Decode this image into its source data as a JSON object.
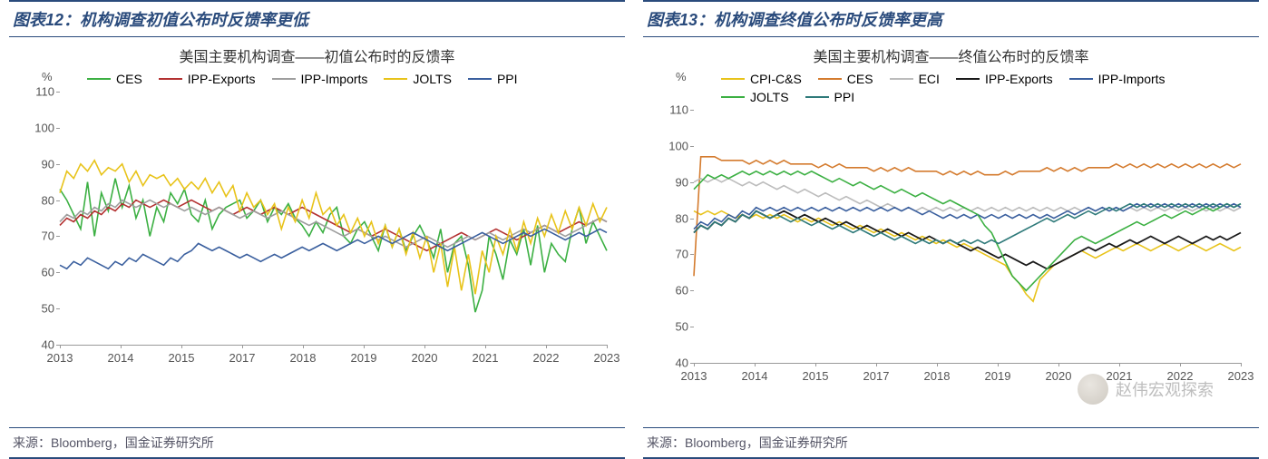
{
  "colors": {
    "border": "#2a4b7c",
    "axis": "#999999",
    "text": "#555555",
    "background": "#ffffff"
  },
  "watermark": "赵伟宏观探索",
  "left": {
    "title_bar": "图表12：机构调查初值公布时反馈率更低",
    "chart_title": "美国主要机构调查——初值公布时的反馈率",
    "y_unit": "%",
    "ylim": [
      40,
      110
    ],
    "ytick_step": 10,
    "x_years": [
      "2013",
      "2014",
      "2015",
      "2017",
      "2018",
      "2019",
      "2020",
      "2021",
      "2022",
      "2023"
    ],
    "source": "来源：Bloomberg，国金证券研究所",
    "series": [
      {
        "name": "CES",
        "color": "#3cb043",
        "width": 1.6,
        "data": [
          83,
          80,
          76,
          72,
          85,
          70,
          82,
          77,
          86,
          78,
          84,
          75,
          80,
          70,
          78,
          74,
          82,
          79,
          83,
          76,
          74,
          80,
          72,
          76,
          78,
          79,
          80,
          75,
          77,
          80,
          74,
          78,
          76,
          79,
          75,
          73,
          70,
          74,
          71,
          76,
          78,
          70,
          68,
          72,
          74,
          70,
          66,
          73,
          67,
          72,
          66,
          70,
          73,
          69,
          64,
          72,
          60,
          68,
          70,
          62,
          49,
          55,
          70,
          65,
          58,
          69,
          65,
          72,
          62,
          73,
          60,
          68,
          65,
          63,
          72,
          78,
          68,
          74,
          70,
          66
        ]
      },
      {
        "name": "IPP-Exports",
        "color": "#b33131",
        "width": 1.6,
        "data": [
          73,
          75,
          74,
          76,
          75,
          77,
          76,
          78,
          77,
          79,
          78,
          80,
          79,
          78,
          79,
          80,
          79,
          78,
          79,
          80,
          79,
          78,
          77,
          78,
          77,
          76,
          77,
          78,
          77,
          76,
          77,
          78,
          77,
          76,
          77,
          78,
          77,
          76,
          75,
          74,
          73,
          72,
          71,
          72,
          71,
          70,
          71,
          72,
          71,
          70,
          69,
          68,
          67,
          66,
          67,
          68,
          69,
          70,
          71,
          70,
          69,
          70,
          71,
          72,
          71,
          70,
          69,
          70,
          71,
          72,
          73,
          72,
          71,
          72,
          73,
          74,
          73,
          74,
          75,
          74
        ]
      },
      {
        "name": "IPP-Imports",
        "color": "#9e9e9e",
        "width": 1.6,
        "data": [
          74,
          76,
          75,
          77,
          76,
          78,
          77,
          79,
          78,
          80,
          79,
          78,
          79,
          80,
          79,
          78,
          79,
          78,
          77,
          78,
          77,
          76,
          77,
          78,
          77,
          76,
          75,
          76,
          77,
          76,
          75,
          76,
          77,
          76,
          75,
          74,
          73,
          74,
          73,
          72,
          71,
          70,
          71,
          72,
          71,
          70,
          69,
          70,
          69,
          68,
          67,
          68,
          69,
          70,
          69,
          68,
          67,
          68,
          69,
          70,
          69,
          70,
          71,
          70,
          69,
          70,
          71,
          72,
          71,
          72,
          73,
          72,
          71,
          70,
          71,
          72,
          73,
          74,
          75,
          74
        ]
      },
      {
        "name": "JOLTS",
        "color": "#e8c31a",
        "width": 1.6,
        "data": [
          82,
          88,
          86,
          90,
          88,
          91,
          87,
          89,
          88,
          90,
          85,
          88,
          84,
          87,
          86,
          87,
          84,
          86,
          83,
          85,
          83,
          86,
          82,
          85,
          81,
          84,
          77,
          82,
          78,
          80,
          76,
          79,
          72,
          78,
          74,
          80,
          75,
          82,
          76,
          78,
          73,
          76,
          71,
          75,
          70,
          74,
          68,
          73,
          67,
          72,
          65,
          71,
          64,
          70,
          60,
          68,
          56,
          67,
          55,
          65,
          54,
          66,
          60,
          70,
          65,
          72,
          66,
          74,
          68,
          75,
          70,
          76,
          71,
          77,
          72,
          78,
          73,
          79,
          74,
          78
        ]
      },
      {
        "name": "PPI",
        "color": "#3a5f9e",
        "width": 1.6,
        "data": [
          62,
          61,
          63,
          62,
          64,
          63,
          62,
          61,
          63,
          62,
          64,
          63,
          65,
          64,
          63,
          62,
          64,
          63,
          65,
          66,
          68,
          67,
          66,
          67,
          66,
          65,
          64,
          65,
          64,
          63,
          64,
          65,
          64,
          65,
          66,
          67,
          66,
          67,
          68,
          67,
          66,
          67,
          68,
          69,
          68,
          69,
          70,
          69,
          68,
          69,
          70,
          71,
          70,
          69,
          68,
          67,
          66,
          67,
          68,
          69,
          70,
          71,
          70,
          69,
          68,
          69,
          70,
          71,
          70,
          71,
          72,
          71,
          70,
          69,
          70,
          71,
          70,
          71,
          72,
          71
        ]
      }
    ]
  },
  "right": {
    "title_bar": "图表13：机构调查终值公布时反馈率更高",
    "chart_title": "美国主要机构调查——终值公布时的反馈率",
    "y_unit": "%",
    "ylim": [
      40,
      110
    ],
    "ytick_step": 10,
    "x_years": [
      "2013",
      "2014",
      "2015",
      "2017",
      "2018",
      "2019",
      "2020",
      "2021",
      "2022",
      "2023"
    ],
    "source": "来源：Bloomberg，国金证券研究所",
    "series": [
      {
        "name": "CPI-C&S",
        "color": "#e8c31a",
        "width": 1.6,
        "data": [
          82,
          81,
          82,
          81,
          82,
          81,
          80,
          81,
          80,
          81,
          80,
          81,
          80,
          81,
          80,
          79,
          80,
          79,
          80,
          79,
          78,
          79,
          78,
          77,
          78,
          77,
          76,
          77,
          76,
          75,
          76,
          75,
          74,
          75,
          74,
          73,
          74,
          73,
          72,
          73,
          72,
          71,
          70,
          69,
          68,
          67,
          64,
          62,
          59,
          57,
          63,
          65,
          67,
          68,
          69,
          70,
          71,
          70,
          69,
          70,
          71,
          72,
          71,
          72,
          73,
          72,
          71,
          72,
          73,
          72,
          71,
          72,
          73,
          72,
          71,
          72,
          73,
          72,
          71,
          72
        ]
      },
      {
        "name": "CES",
        "color": "#d47b2e",
        "width": 1.6,
        "data": [
          64,
          97,
          97,
          97,
          96,
          96,
          96,
          96,
          95,
          96,
          95,
          96,
          95,
          96,
          95,
          95,
          95,
          95,
          94,
          95,
          94,
          95,
          94,
          94,
          94,
          94,
          93,
          94,
          93,
          94,
          93,
          94,
          93,
          93,
          93,
          93,
          92,
          93,
          92,
          93,
          92,
          93,
          92,
          92,
          92,
          93,
          92,
          93,
          93,
          93,
          93,
          94,
          93,
          94,
          93,
          94,
          93,
          94,
          94,
          94,
          94,
          95,
          94,
          95,
          94,
          95,
          94,
          95,
          94,
          95,
          94,
          95,
          94,
          95,
          94,
          95,
          94,
          95,
          94,
          95
        ]
      },
      {
        "name": "ECI",
        "color": "#bcbcbc",
        "width": 1.6,
        "data": [
          90,
          91,
          90,
          91,
          90,
          91,
          90,
          89,
          90,
          89,
          90,
          89,
          88,
          89,
          88,
          87,
          88,
          87,
          86,
          87,
          86,
          85,
          86,
          85,
          84,
          85,
          84,
          83,
          84,
          83,
          82,
          83,
          82,
          83,
          82,
          83,
          82,
          83,
          82,
          83,
          82,
          83,
          82,
          83,
          82,
          83,
          82,
          83,
          82,
          83,
          82,
          83,
          82,
          83,
          82,
          83,
          82,
          83,
          82,
          83,
          82,
          83,
          82,
          83,
          82,
          83,
          82,
          83,
          82,
          83,
          82,
          83,
          82,
          83,
          82,
          83,
          82,
          83,
          82,
          83
        ]
      },
      {
        "name": "IPP-Exports",
        "color": "#1a1a1a",
        "width": 1.8,
        "data": [
          76,
          78,
          77,
          79,
          78,
          80,
          79,
          81,
          80,
          82,
          81,
          80,
          81,
          82,
          81,
          80,
          81,
          80,
          79,
          80,
          79,
          78,
          79,
          78,
          77,
          78,
          77,
          76,
          77,
          76,
          75,
          76,
          75,
          74,
          75,
          74,
          73,
          74,
          73,
          72,
          71,
          72,
          71,
          70,
          69,
          70,
          69,
          68,
          67,
          68,
          67,
          66,
          67,
          68,
          69,
          70,
          71,
          72,
          71,
          72,
          73,
          72,
          73,
          74,
          73,
          74,
          75,
          74,
          73,
          74,
          75,
          74,
          73,
          74,
          75,
          74,
          75,
          74,
          75,
          76
        ]
      },
      {
        "name": "IPP-Imports",
        "color": "#3a5f9e",
        "width": 1.6,
        "data": [
          77,
          79,
          78,
          80,
          79,
          81,
          80,
          82,
          81,
          83,
          82,
          83,
          82,
          83,
          82,
          83,
          82,
          83,
          82,
          83,
          82,
          83,
          82,
          83,
          82,
          83,
          82,
          83,
          82,
          83,
          82,
          83,
          82,
          81,
          82,
          81,
          80,
          81,
          80,
          81,
          80,
          81,
          80,
          81,
          80,
          81,
          80,
          81,
          80,
          81,
          80,
          81,
          80,
          81,
          82,
          81,
          82,
          83,
          82,
          83,
          82,
          83,
          82,
          83,
          84,
          83,
          84,
          83,
          84,
          83,
          84,
          83,
          84,
          83,
          84,
          83,
          84,
          83,
          84,
          83
        ]
      },
      {
        "name": "JOLTS",
        "color": "#3cb043",
        "width": 1.6,
        "data": [
          88,
          90,
          92,
          91,
          92,
          91,
          92,
          93,
          92,
          93,
          92,
          93,
          92,
          93,
          92,
          93,
          92,
          93,
          92,
          91,
          90,
          91,
          90,
          89,
          90,
          89,
          88,
          89,
          88,
          87,
          88,
          87,
          86,
          87,
          86,
          85,
          84,
          85,
          84,
          83,
          82,
          81,
          78,
          76,
          72,
          68,
          64,
          62,
          60,
          62,
          64,
          66,
          68,
          70,
          72,
          74,
          75,
          74,
          73,
          74,
          75,
          76,
          77,
          78,
          79,
          78,
          79,
          80,
          81,
          80,
          81,
          82,
          81,
          82,
          83,
          82,
          83,
          84,
          83,
          84
        ]
      },
      {
        "name": "PPI",
        "color": "#2f7a7a",
        "width": 1.6,
        "data": [
          76,
          78,
          77,
          79,
          78,
          80,
          79,
          81,
          80,
          82,
          81,
          80,
          81,
          80,
          79,
          80,
          79,
          78,
          79,
          78,
          77,
          78,
          77,
          76,
          77,
          76,
          75,
          76,
          75,
          74,
          75,
          74,
          73,
          74,
          73,
          74,
          73,
          74,
          73,
          74,
          73,
          74,
          73,
          74,
          73,
          74,
          75,
          76,
          77,
          78,
          79,
          80,
          79,
          80,
          81,
          80,
          81,
          82,
          81,
          82,
          83,
          82,
          83,
          84,
          83,
          84,
          83,
          84,
          83,
          84,
          83,
          84,
          83,
          84,
          83,
          84,
          83,
          84,
          83,
          84
        ]
      }
    ]
  }
}
